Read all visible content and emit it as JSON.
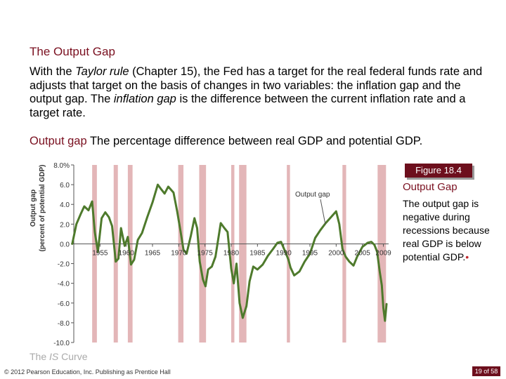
{
  "section_title": "The Output Gap",
  "paragraph": {
    "p1": "With the ",
    "taylor": "Taylor rule",
    "p2": " (Chapter 15), the Fed has a target for the real federal funds rate and adjusts that target on the basis of changes in two variables: the inflation gap and the output gap. The ",
    "inflation_gap": "inflation gap",
    "p3": " is the difference between the current inflation rate and a target rate."
  },
  "definition": {
    "term": "Output gap",
    "text": " The percentage difference between real GDP and potential GDP."
  },
  "figure": {
    "badge": "Figure 18.4",
    "title": "Output Gap",
    "caption": "The output gap is negative during recessions because real GDP is below potential GDP.",
    "bullet": "•"
  },
  "footer": {
    "link_pre": "The ",
    "link_is": "IS",
    "link_post": " Curve",
    "copyright": "© 2012 Pearson Education, Inc. Publishing as Prentice Hall",
    "page": "19 of 58"
  },
  "colors": {
    "accent": "#7a1020",
    "line": "#4e7a2c",
    "recession": "#e3b6b8",
    "badge": "#6d0f1d"
  },
  "chart_data": {
    "type": "line",
    "ylabel": "Output gap (percent of potential GDP)",
    "ylim": [
      -10,
      8
    ],
    "xlim": [
      1950,
      2010
    ],
    "y_ticks": [
      8,
      6,
      4,
      2,
      0,
      -2,
      -4,
      -6,
      -8,
      -10
    ],
    "y_tick_labels": [
      "8.0%",
      "6.0",
      "4.0",
      "2.0",
      "0.0",
      "-2.0",
      "-4.0",
      "-6.0",
      "-8.0",
      "-10.0"
    ],
    "x_ticks": [
      1955,
      1960,
      1965,
      1970,
      1975,
      1980,
      1985,
      1990,
      1995,
      2000,
      2005,
      2009
    ],
    "x_tick_labels": [
      "1955",
      "1960",
      "1965",
      "1970",
      "1975",
      "1980",
      "1985",
      "1990",
      "1995",
      "2000",
      "2005",
      "2009"
    ],
    "series_annotation": "Output gap",
    "recessions": [
      [
        1953.5,
        1954.4
      ],
      [
        1957.6,
        1958.4
      ],
      [
        1960.3,
        1961.2
      ],
      [
        1969.9,
        1970.9
      ],
      [
        1973.9,
        1975.2
      ],
      [
        1980.0,
        1980.6
      ],
      [
        1981.5,
        1982.9
      ],
      [
        1990.6,
        1991.2
      ],
      [
        2001.2,
        2001.9
      ],
      [
        2007.9,
        2009.5
      ]
    ],
    "series": [
      {
        "x": [
          1949.7,
          1950.5,
          1951.3,
          1952.0,
          1952.8,
          1953.5,
          1954.0,
          1954.6,
          1955.3,
          1956.0,
          1956.7,
          1957.3,
          1958.0,
          1958.5,
          1959.0,
          1959.7,
          1960.3,
          1960.9,
          1961.5,
          1962.2,
          1963.0,
          1964.0,
          1965.0,
          1966.0,
          1966.7,
          1967.3,
          1968.0,
          1969.0,
          1969.7,
          1970.3,
          1970.9,
          1971.5,
          1972.3,
          1973.0,
          1973.5,
          1974.0,
          1974.6,
          1975.1,
          1975.6,
          1976.3,
          1977.0,
          1978.0,
          1978.7,
          1979.3,
          1980.0,
          1980.5,
          1981.0,
          1981.6,
          1982.2,
          1982.9,
          1983.5,
          1984.2,
          1985.0,
          1986.0,
          1987.0,
          1988.0,
          1988.8,
          1989.5,
          1990.3,
          1990.9,
          1991.3,
          1992.0,
          1993.0,
          1994.0,
          1995.0,
          1996.0,
          1997.0,
          1998.0,
          1999.0,
          2000.0,
          2000.6,
          2001.2,
          2001.8,
          2002.5,
          2003.3,
          2004.0,
          2005.0,
          2006.0,
          2006.7,
          2007.3,
          2007.8,
          2008.3,
          2008.7,
          2009.0,
          2009.3,
          2009.6
        ],
        "y": [
          0.0,
          2.0,
          3.0,
          3.8,
          3.4,
          4.3,
          1.2,
          -0.8,
          2.6,
          3.2,
          2.7,
          1.8,
          -1.8,
          -1.5,
          1.6,
          -0.2,
          0.7,
          -2.1,
          -1.6,
          0.4,
          1.1,
          2.7,
          4.2,
          6.0,
          5.5,
          5.1,
          5.8,
          5.2,
          3.3,
          1.4,
          -0.6,
          -1.0,
          0.8,
          2.6,
          1.6,
          -1.8,
          -3.6,
          -4.3,
          -2.6,
          -2.3,
          -1.3,
          2.1,
          1.6,
          1.2,
          -2.5,
          -4.0,
          -2.0,
          -6.0,
          -7.5,
          -6.3,
          -3.8,
          -2.3,
          -2.6,
          -2.1,
          -1.2,
          -0.5,
          0.1,
          0.2,
          -0.8,
          -1.6,
          -2.4,
          -3.2,
          -2.8,
          -1.8,
          -1.0,
          0.6,
          1.4,
          2.1,
          2.7,
          3.3,
          2.0,
          -0.5,
          -1.3,
          -1.8,
          -2.2,
          -1.3,
          -0.3,
          0.1,
          0.2,
          -0.1,
          -0.8,
          -2.8,
          -4.2,
          -6.5,
          -7.8,
          -6.1
        ]
      }
    ]
  }
}
